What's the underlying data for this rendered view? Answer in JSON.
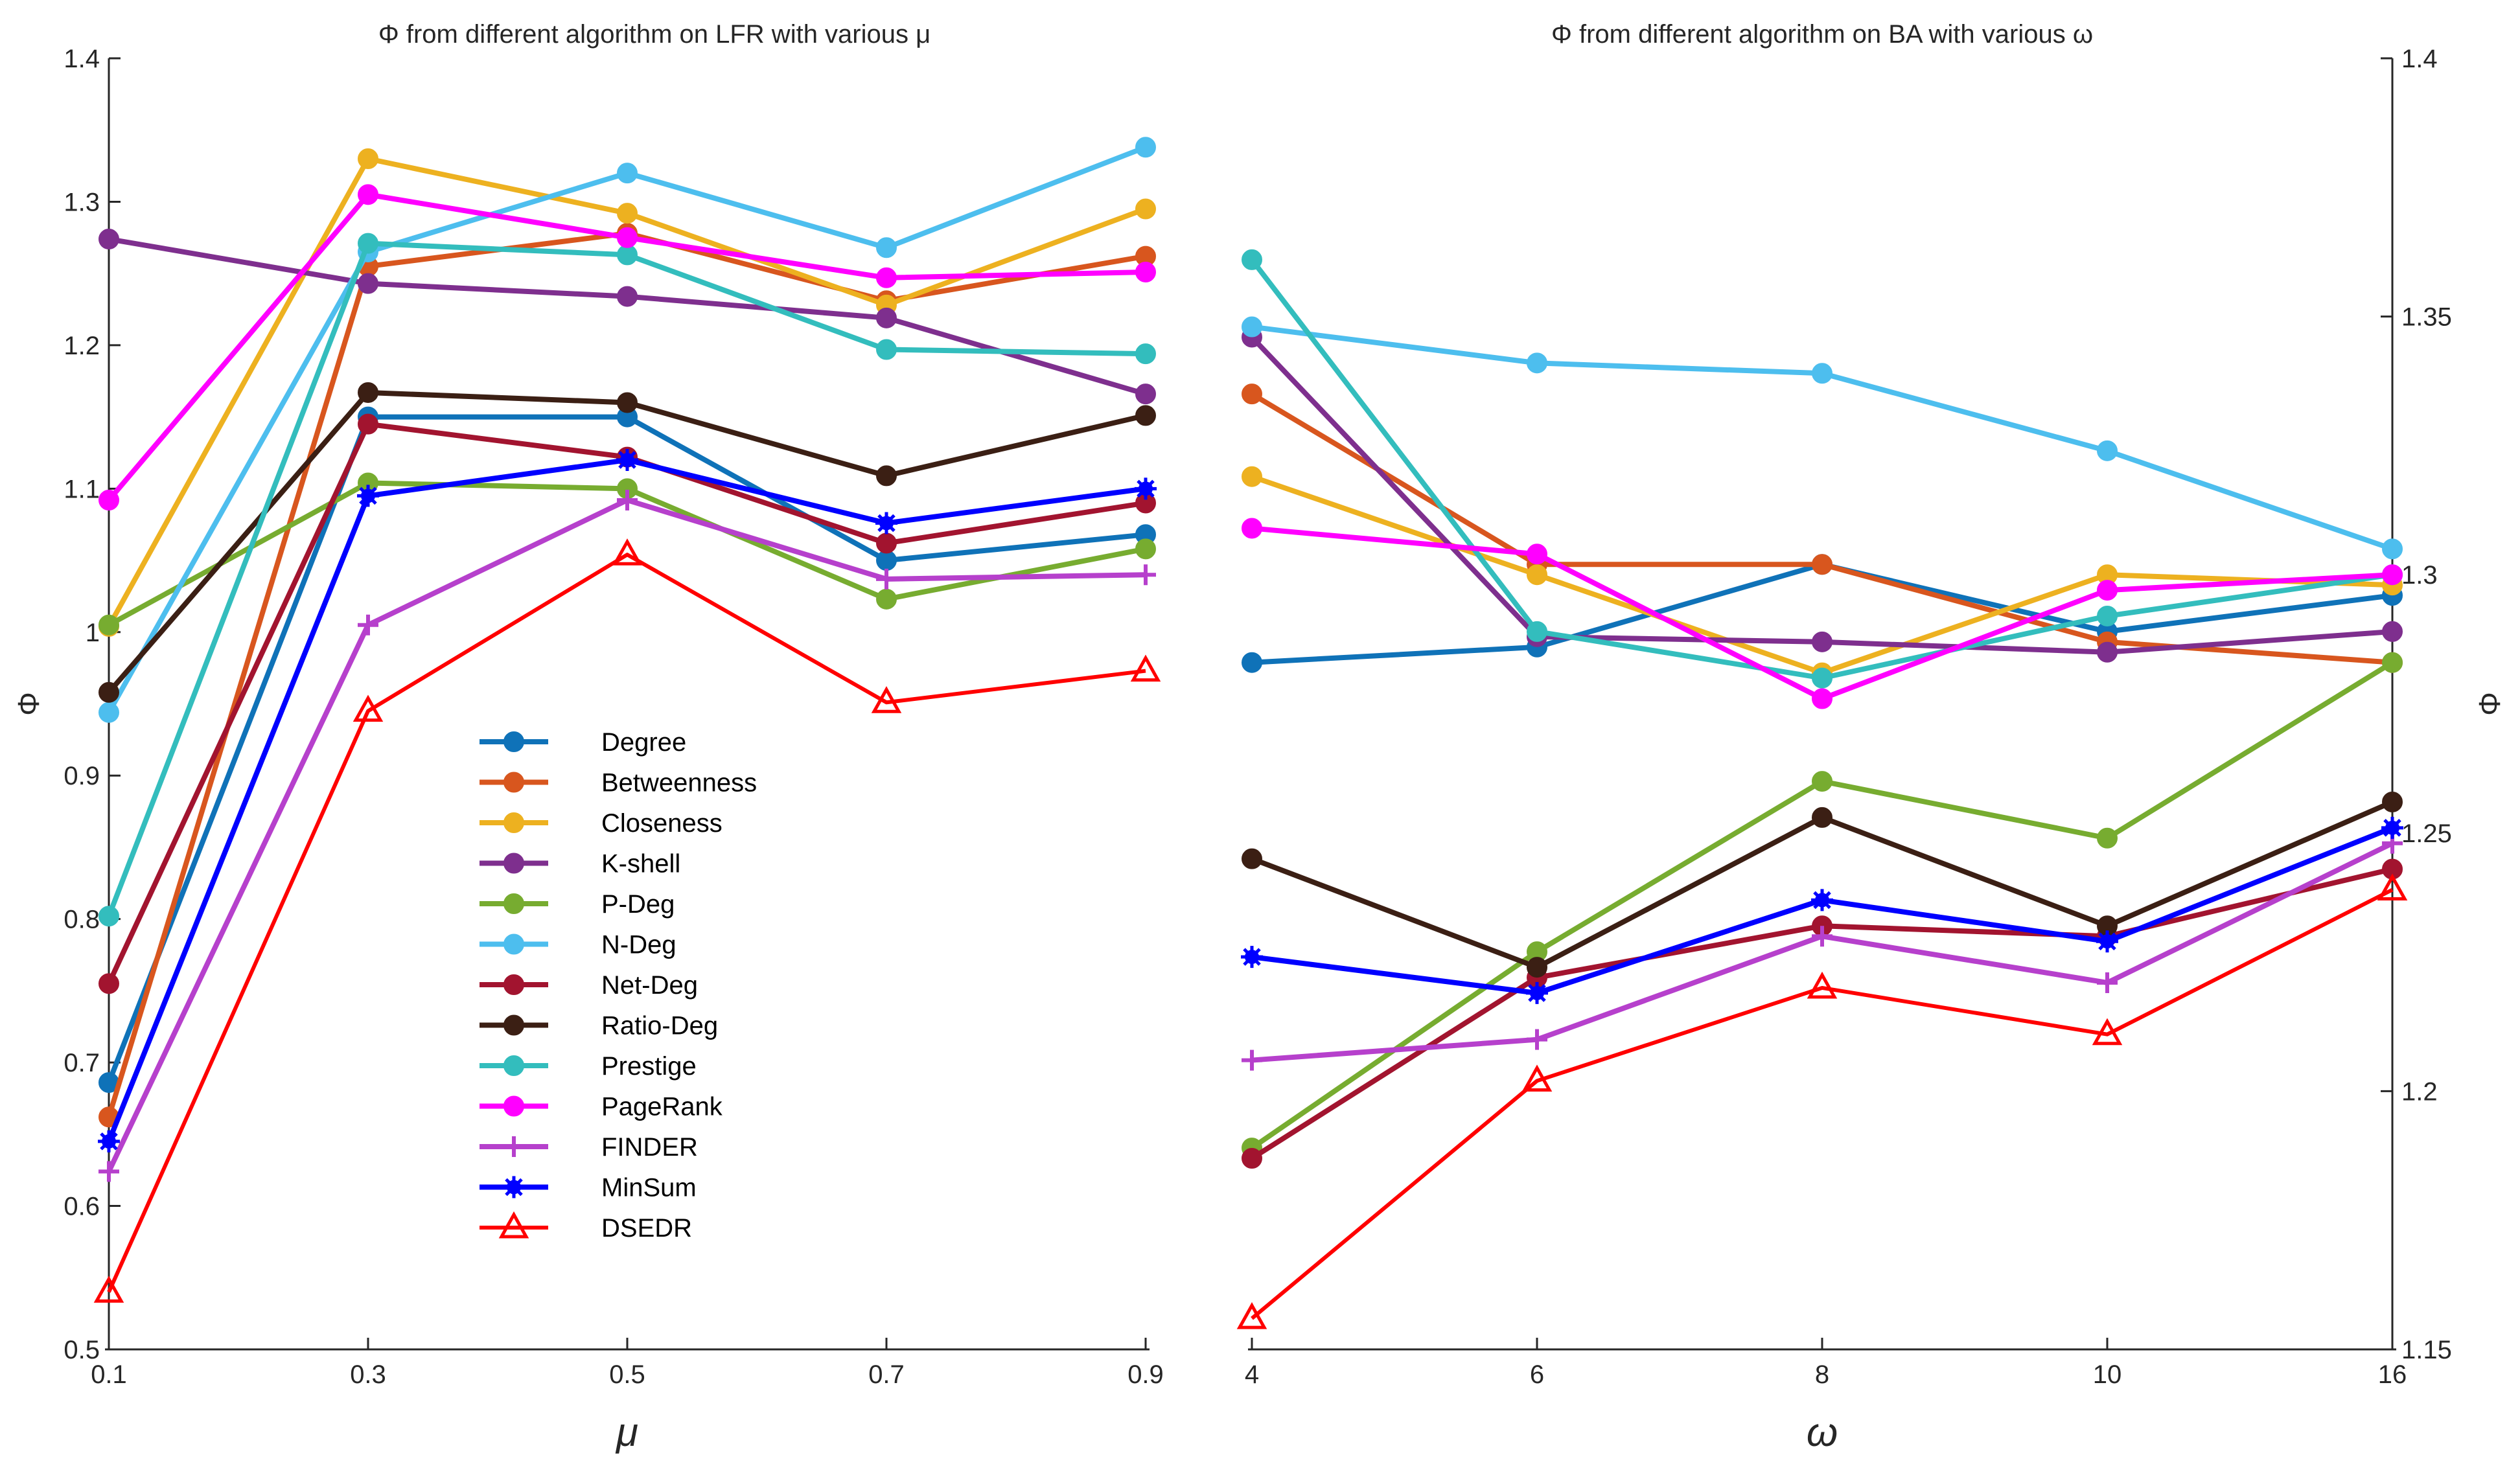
{
  "chart_data": [
    {
      "type": "line",
      "title": "Φ from different algorithm on LFR with various μ",
      "xlabel": "μ",
      "ylabel": "Φ",
      "x": [
        0.1,
        0.3,
        0.5,
        0.7,
        0.9
      ],
      "x_tick_labels": [
        "0.1",
        "0.3",
        "0.5",
        "0.7",
        "0.9"
      ],
      "ylim": [
        0.5,
        1.4
      ],
      "y_ticks": [
        0.5,
        0.6,
        0.7,
        0.8,
        0.9,
        1,
        1.1,
        1.2,
        1.3,
        1.4
      ],
      "y_tick_labels": [
        "0.5",
        "0.6",
        "0.7",
        "0.8",
        "0.9",
        "1",
        "1.1",
        "1.2",
        "1.3",
        "1.4"
      ],
      "series": [
        {
          "name": "Degree",
          "values": [
            0.686,
            1.15,
            1.15,
            1.05,
            1.068
          ]
        },
        {
          "name": "Betweenness",
          "values": [
            0.662,
            1.255,
            1.278,
            1.231,
            1.262
          ]
        },
        {
          "name": "Closeness",
          "values": [
            1.004,
            1.33,
            1.292,
            1.228,
            1.295
          ]
        },
        {
          "name": "K-shell",
          "values": [
            1.274,
            1.243,
            1.234,
            1.219,
            1.166
          ]
        },
        {
          "name": "P-Deg",
          "values": [
            1.005,
            1.104,
            1.1,
            1.023,
            1.058
          ]
        },
        {
          "name": "N-Deg",
          "values": [
            0.944,
            1.265,
            1.32,
            1.268,
            1.338
          ]
        },
        {
          "name": "Net-Deg",
          "values": [
            0.755,
            1.145,
            1.122,
            1.062,
            1.09
          ]
        },
        {
          "name": "Ratio-Deg",
          "values": [
            0.958,
            1.167,
            1.16,
            1.109,
            1.151
          ]
        },
        {
          "name": "Prestige",
          "values": [
            0.802,
            1.271,
            1.263,
            1.197,
            1.194
          ]
        },
        {
          "name": "PageRank",
          "values": [
            1.092,
            1.305,
            1.275,
            1.247,
            1.251
          ]
        },
        {
          "name": "FINDER",
          "values": [
            0.624,
            1.005,
            1.092,
            1.037,
            1.04
          ]
        },
        {
          "name": "MinSum",
          "values": [
            0.645,
            1.095,
            1.12,
            1.076,
            1.1
          ]
        },
        {
          "name": "DSEDR",
          "values": [
            0.54,
            0.945,
            1.054,
            0.951,
            0.973
          ]
        }
      ]
    },
    {
      "type": "line",
      "title": "Φ from different algorithm on BA with various ω",
      "xlabel": "ω",
      "ylabel": "Φ",
      "x": [
        4,
        6,
        8,
        10,
        16
      ],
      "x_tick_labels": [
        "4",
        "6",
        "8",
        "10",
        "16"
      ],
      "ylim": [
        1.15,
        1.4
      ],
      "y_ticks": [
        1.15,
        1.2,
        1.25,
        1.3,
        1.35,
        1.4
      ],
      "y_tick_labels": [
        "1.15",
        "1.2",
        "1.25",
        "1.3",
        "1.35",
        "1.4"
      ],
      "series": [
        {
          "name": "Degree",
          "values": [
            1.283,
            1.286,
            1.302,
            1.289,
            1.296
          ]
        },
        {
          "name": "Betweenness",
          "values": [
            1.335,
            1.302,
            1.302,
            1.287,
            1.283
          ]
        },
        {
          "name": "Closeness",
          "values": [
            1.319,
            1.3,
            1.281,
            1.3,
            1.298
          ]
        },
        {
          "name": "K-shell",
          "values": [
            1.346,
            1.288,
            1.287,
            1.285,
            1.289
          ]
        },
        {
          "name": "P-Deg",
          "values": [
            1.189,
            1.227,
            1.26,
            1.249,
            1.283
          ]
        },
        {
          "name": "N-Deg",
          "values": [
            1.348,
            1.341,
            1.339,
            1.324,
            1.305
          ]
        },
        {
          "name": "Net-Deg",
          "values": [
            1.187,
            1.222,
            1.232,
            1.23,
            1.243
          ]
        },
        {
          "name": "Ratio-Deg",
          "values": [
            1.245,
            1.224,
            1.253,
            1.232,
            1.256
          ]
        },
        {
          "name": "Prestige",
          "values": [
            1.361,
            1.289,
            1.28,
            1.292,
            1.3
          ]
        },
        {
          "name": "PageRank",
          "values": [
            1.309,
            1.304,
            1.276,
            1.297,
            1.3
          ]
        },
        {
          "name": "FINDER",
          "values": [
            1.206,
            1.21,
            1.23,
            1.221,
            1.248
          ]
        },
        {
          "name": "MinSum",
          "values": [
            1.226,
            1.219,
            1.237,
            1.229,
            1.251
          ]
        },
        {
          "name": "DSEDR",
          "values": [
            1.156,
            1.202,
            1.22,
            1.211,
            1.239
          ]
        }
      ]
    }
  ],
  "legend": {
    "placement": "center-left of left panel",
    "entries": [
      "Degree",
      "Betweenness",
      "Closeness",
      "K-shell",
      "P-Deg",
      "N-Deg",
      "Net-Deg",
      "Ratio-Deg",
      "Prestige",
      "PageRank",
      "FINDER",
      "MinSum",
      "DSEDR"
    ]
  },
  "series_style": {
    "Degree": {
      "color": "#0F72B8",
      "marker": "circle"
    },
    "Betweenness": {
      "color": "#D8561E",
      "marker": "circle"
    },
    "Closeness": {
      "color": "#EDB120",
      "marker": "circle"
    },
    "K-shell": {
      "color": "#7E2F8E",
      "marker": "circle"
    },
    "P-Deg": {
      "color": "#77AC30",
      "marker": "circle"
    },
    "N-Deg": {
      "color": "#4DBEEE",
      "marker": "circle"
    },
    "Net-Deg": {
      "color": "#A2142F",
      "marker": "circle"
    },
    "Ratio-Deg": {
      "color": "#3B1F14",
      "marker": "circle"
    },
    "Prestige": {
      "color": "#33BDBD",
      "marker": "circle"
    },
    "PageRank": {
      "color": "#FF00FF",
      "marker": "circle"
    },
    "FINDER": {
      "color": "#B640CC",
      "marker": "plus"
    },
    "MinSum": {
      "color": "#0000FF",
      "marker": "star"
    },
    "DSEDR": {
      "color": "#FF0000",
      "marker": "triangle"
    }
  }
}
